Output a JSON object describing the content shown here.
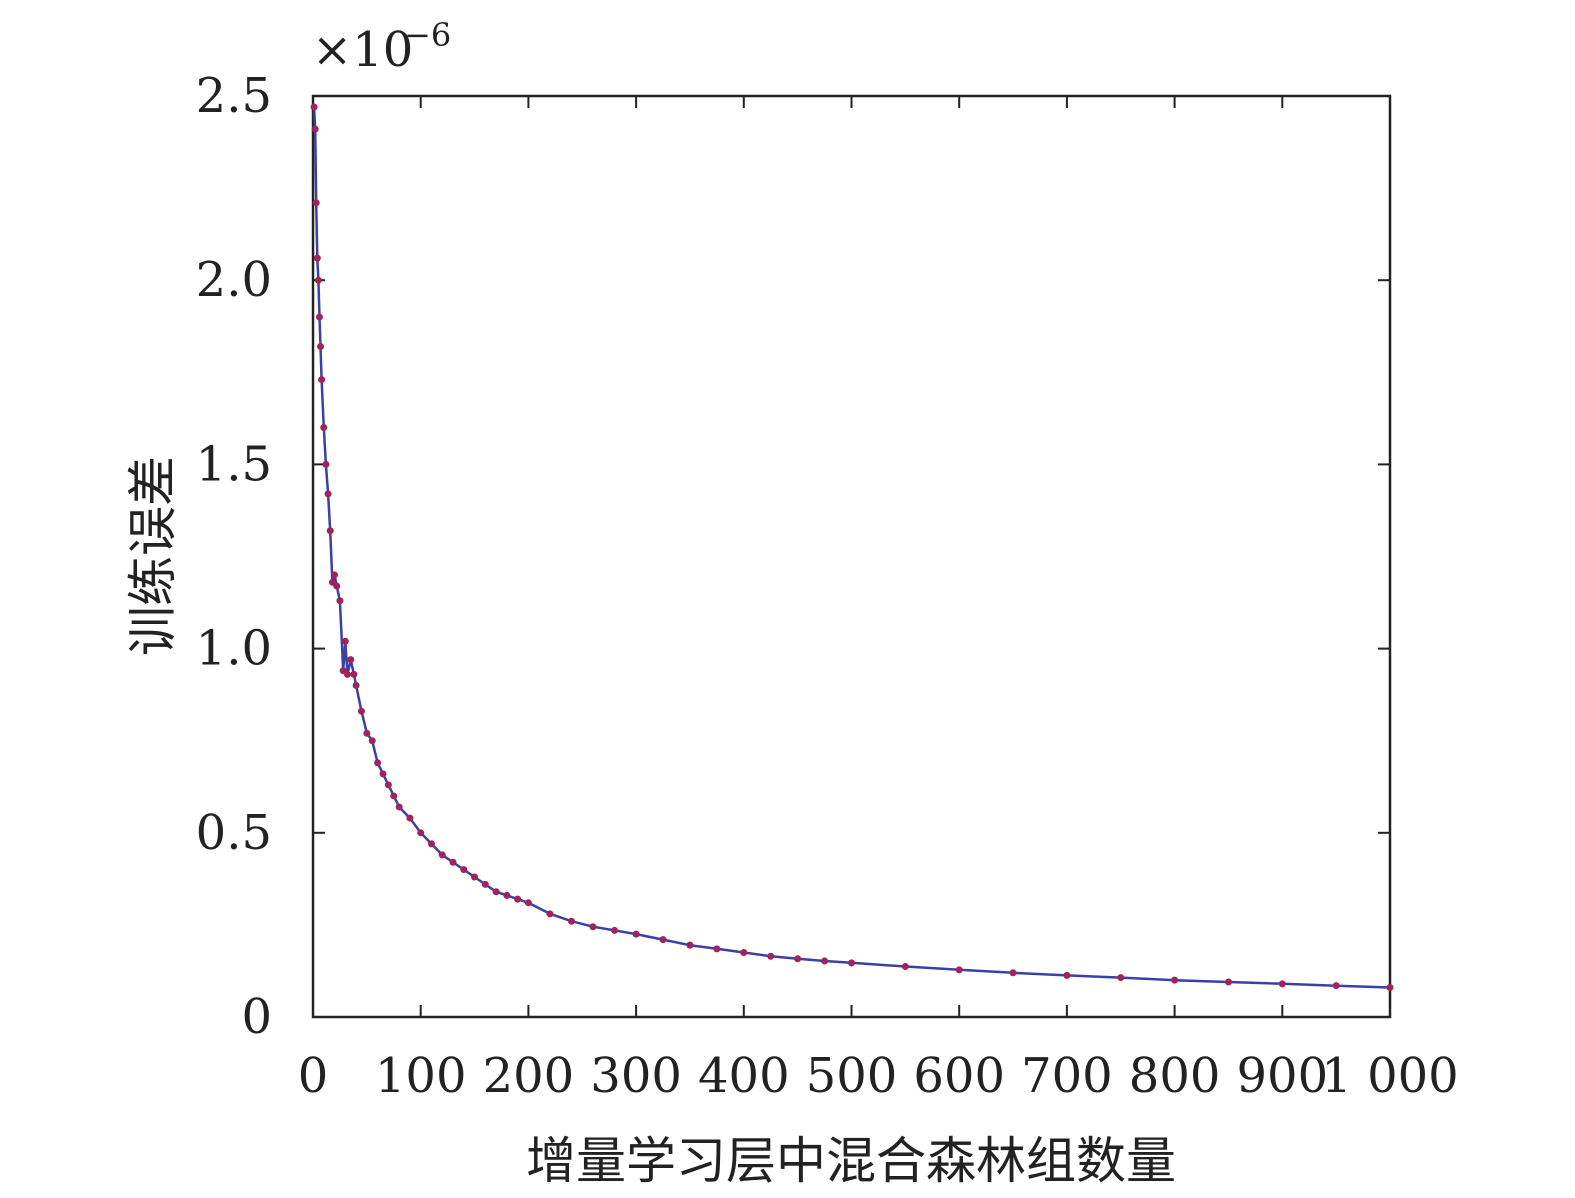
{
  "chart_data": {
    "type": "line",
    "xlabel": "增量学习层中混合森林组数量",
    "ylabel": "训练误差",
    "y_multiplier": "×10",
    "y_multiplier_exponent": "−6",
    "xlim": [
      0,
      1000
    ],
    "ylim": [
      0,
      2.5
    ],
    "x_ticks": [
      0,
      100,
      200,
      300,
      400,
      500,
      600,
      700,
      800,
      900,
      1000
    ],
    "x_tick_labels": [
      "0",
      "100",
      "200",
      "300",
      "400",
      "500",
      "600",
      "700",
      "800",
      "900",
      "1 000"
    ],
    "y_ticks": [
      0,
      0.5,
      1.0,
      1.5,
      2.0,
      2.5
    ],
    "y_tick_labels": [
      "0",
      "0.5",
      "1.0",
      "1.5",
      "2.0",
      "2.5"
    ],
    "grid": false,
    "line_color": "#3b3fa8",
    "marker_color": "#a0245a",
    "series": [
      {
        "x": [
          1,
          2,
          3,
          4,
          5,
          6,
          7,
          8,
          10,
          12,
          14,
          16,
          18,
          20,
          22,
          25,
          28,
          30,
          32,
          35,
          38,
          40,
          45,
          50,
          55,
          60,
          65,
          70,
          75,
          80,
          90,
          100,
          110,
          120,
          130,
          140,
          150,
          160,
          170,
          180,
          190,
          200,
          220,
          240,
          260,
          280,
          300,
          325,
          350,
          375,
          400,
          425,
          450,
          475,
          500,
          550,
          600,
          650,
          700,
          750,
          800,
          850,
          900,
          950,
          1000
        ],
        "y": [
          2.47,
          2.41,
          2.21,
          2.06,
          2.0,
          1.9,
          1.82,
          1.73,
          1.6,
          1.5,
          1.42,
          1.32,
          1.18,
          1.2,
          1.17,
          1.13,
          0.94,
          1.02,
          0.93,
          0.97,
          0.93,
          0.9,
          0.83,
          0.77,
          0.75,
          0.69,
          0.66,
          0.63,
          0.6,
          0.57,
          0.54,
          0.5,
          0.47,
          0.44,
          0.42,
          0.4,
          0.38,
          0.36,
          0.34,
          0.33,
          0.32,
          0.31,
          0.28,
          0.26,
          0.245,
          0.235,
          0.225,
          0.21,
          0.195,
          0.185,
          0.175,
          0.165,
          0.158,
          0.152,
          0.147,
          0.137,
          0.128,
          0.12,
          0.113,
          0.107,
          0.1,
          0.095,
          0.09,
          0.085,
          0.08
        ]
      }
    ]
  }
}
